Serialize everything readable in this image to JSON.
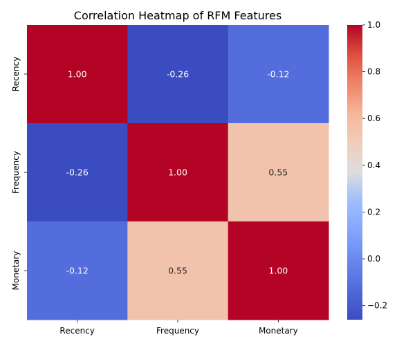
{
  "chart_data": {
    "type": "heatmap",
    "title": "Correlation Heatmap of RFM Features",
    "rows": [
      "Recency",
      "Frequency",
      "Monetary"
    ],
    "columns": [
      "Recency",
      "Frequency",
      "Monetary"
    ],
    "values": [
      [
        1.0,
        -0.26,
        -0.12
      ],
      [
        -0.26,
        1.0,
        0.55
      ],
      [
        -0.12,
        0.55,
        1.0
      ]
    ],
    "value_format": "0.00",
    "colormap": "coolwarm",
    "colorbar": {
      "vmin": -0.26,
      "vmax": 1.0,
      "ticks": [
        -0.2,
        0.0,
        0.2,
        0.4,
        0.6,
        0.8,
        1.0
      ],
      "tick_labels": [
        "−0.2",
        "0.0",
        "0.2",
        "0.4",
        "0.6",
        "0.8",
        "1.0"
      ],
      "position": "right"
    },
    "grid": false
  }
}
